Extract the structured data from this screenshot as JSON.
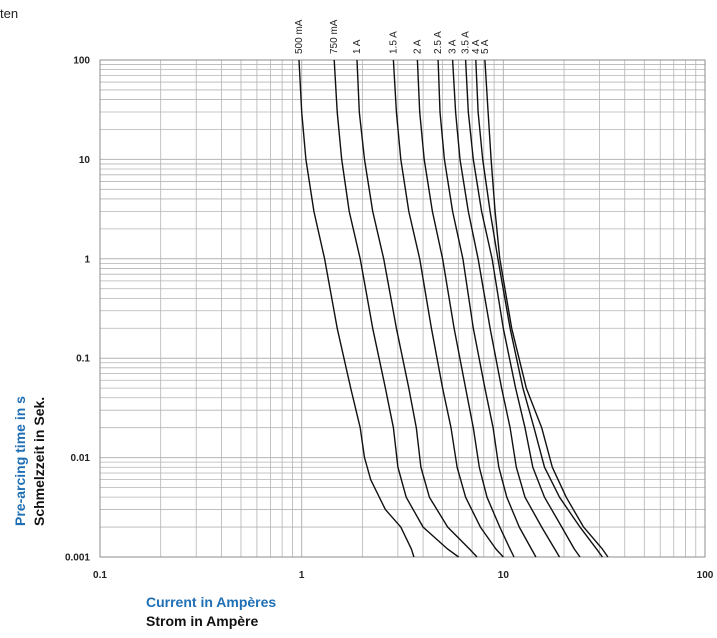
{
  "top_text": "ten",
  "colors": {
    "grid": "#b4b4b4",
    "curve": "#111111",
    "axis_en": "#1f6fb5",
    "axis_de": "#111111"
  },
  "chart_data": {
    "type": "line",
    "xscale": "log",
    "yscale": "log",
    "xlim": [
      0.1,
      100
    ],
    "ylim": [
      0.001,
      100
    ],
    "grid": true,
    "xticks": [
      "0.1",
      "1",
      "10",
      "100"
    ],
    "yticks": [
      "100",
      "10",
      "1",
      "0.1",
      "0.01",
      "0.001"
    ],
    "xlabel": "Current in Ampères",
    "xlabel_de": "Strom in Ampère",
    "ylabel": "Pre-arcing time in s",
    "ylabel_de": "Schmelzzeit in Sek.",
    "series": [
      {
        "name": "500 mA",
        "points": [
          [
            0.97,
            100
          ],
          [
            1.0,
            30
          ],
          [
            1.05,
            10
          ],
          [
            1.15,
            3
          ],
          [
            1.3,
            1
          ],
          [
            1.5,
            0.2
          ],
          [
            1.75,
            0.05
          ],
          [
            1.95,
            0.02
          ],
          [
            2.05,
            0.01
          ],
          [
            2.2,
            0.006
          ],
          [
            2.6,
            0.003
          ],
          [
            3.1,
            0.002
          ],
          [
            3.5,
            0.0012
          ],
          [
            3.6,
            0.001
          ]
        ]
      },
      {
        "name": "750 mA",
        "points": [
          [
            1.45,
            100
          ],
          [
            1.5,
            30
          ],
          [
            1.58,
            10
          ],
          [
            1.72,
            3
          ],
          [
            1.95,
            1
          ],
          [
            2.25,
            0.2
          ],
          [
            2.6,
            0.05
          ],
          [
            2.85,
            0.02
          ],
          [
            3.0,
            0.008
          ],
          [
            3.3,
            0.004
          ],
          [
            4.0,
            0.002
          ],
          [
            5.3,
            0.0012
          ],
          [
            6.0,
            0.001
          ]
        ]
      },
      {
        "name": "1 A",
        "points": [
          [
            1.88,
            100
          ],
          [
            1.93,
            30
          ],
          [
            2.05,
            10
          ],
          [
            2.25,
            3
          ],
          [
            2.55,
            1
          ],
          [
            2.95,
            0.2
          ],
          [
            3.4,
            0.05
          ],
          [
            3.7,
            0.02
          ],
          [
            3.9,
            0.008
          ],
          [
            4.3,
            0.004
          ],
          [
            5.3,
            0.002
          ],
          [
            6.8,
            0.0012
          ],
          [
            7.4,
            0.001
          ]
        ]
      },
      {
        "name": "1.5 A",
        "points": [
          [
            2.85,
            100
          ],
          [
            2.95,
            30
          ],
          [
            3.1,
            10
          ],
          [
            3.4,
            3
          ],
          [
            3.85,
            1
          ],
          [
            4.4,
            0.2
          ],
          [
            5.0,
            0.05
          ],
          [
            5.5,
            0.02
          ],
          [
            5.9,
            0.008
          ],
          [
            6.5,
            0.004
          ],
          [
            7.7,
            0.002
          ],
          [
            9.2,
            0.0012
          ],
          [
            10.0,
            0.001
          ]
        ]
      },
      {
        "name": "2 A",
        "points": [
          [
            3.75,
            100
          ],
          [
            3.85,
            30
          ],
          [
            4.05,
            10
          ],
          [
            4.45,
            3
          ],
          [
            5.0,
            1
          ],
          [
            5.7,
            0.2
          ],
          [
            6.5,
            0.05
          ],
          [
            7.1,
            0.02
          ],
          [
            7.6,
            0.008
          ],
          [
            8.3,
            0.004
          ],
          [
            9.6,
            0.002
          ],
          [
            10.8,
            0.0012
          ],
          [
            11.3,
            0.001
          ]
        ]
      },
      {
        "name": "2.5 A",
        "points": [
          [
            4.75,
            100
          ],
          [
            4.85,
            30
          ],
          [
            5.1,
            10
          ],
          [
            5.6,
            3
          ],
          [
            6.3,
            1
          ],
          [
            7.1,
            0.2
          ],
          [
            8.1,
            0.05
          ],
          [
            8.9,
            0.02
          ],
          [
            9.5,
            0.008
          ],
          [
            10.4,
            0.004
          ],
          [
            12.0,
            0.002
          ],
          [
            13.8,
            0.0012
          ],
          [
            14.5,
            0.001
          ]
        ]
      },
      {
        "name": "3 A",
        "points": [
          [
            5.6,
            100
          ],
          [
            5.8,
            30
          ],
          [
            6.1,
            10
          ],
          [
            6.7,
            3
          ],
          [
            7.5,
            1
          ],
          [
            8.6,
            0.2
          ],
          [
            9.8,
            0.05
          ],
          [
            10.8,
            0.02
          ],
          [
            11.6,
            0.008
          ],
          [
            12.8,
            0.004
          ],
          [
            15.5,
            0.002
          ],
          [
            18.0,
            0.0012
          ],
          [
            19.0,
            0.001
          ]
        ]
      },
      {
        "name": "3.5 A",
        "points": [
          [
            6.5,
            100
          ],
          [
            6.7,
            30
          ],
          [
            7.1,
            10
          ],
          [
            7.8,
            3
          ],
          [
            8.8,
            1
          ],
          [
            10.0,
            0.2
          ],
          [
            11.5,
            0.05
          ],
          [
            12.8,
            0.02
          ],
          [
            14.0,
            0.008
          ],
          [
            16.0,
            0.004
          ],
          [
            19.5,
            0.002
          ],
          [
            22.5,
            0.0012
          ],
          [
            24.0,
            0.001
          ]
        ]
      },
      {
        "name": "4 A",
        "points": [
          [
            7.3,
            100
          ],
          [
            7.5,
            30
          ],
          [
            7.9,
            10
          ],
          [
            8.6,
            3
          ],
          [
            9.4,
            1
          ],
          [
            10.8,
            0.2
          ],
          [
            12.5,
            0.05
          ],
          [
            14.2,
            0.02
          ],
          [
            16.0,
            0.008
          ],
          [
            19.0,
            0.004
          ],
          [
            24.0,
            0.002
          ],
          [
            29.0,
            0.0012
          ],
          [
            31.0,
            0.001
          ]
        ]
      },
      {
        "name": "5 A",
        "points": [
          [
            8.1,
            100
          ],
          [
            8.4,
            30
          ],
          [
            8.7,
            10
          ],
          [
            9.1,
            3
          ],
          [
            9.6,
            1
          ],
          [
            11.0,
            0.2
          ],
          [
            13.0,
            0.05
          ],
          [
            15.5,
            0.02
          ],
          [
            17.5,
            0.008
          ],
          [
            20.5,
            0.004
          ],
          [
            25.0,
            0.002
          ],
          [
            31.0,
            0.0012
          ],
          [
            33.0,
            0.001
          ]
        ]
      }
    ]
  }
}
